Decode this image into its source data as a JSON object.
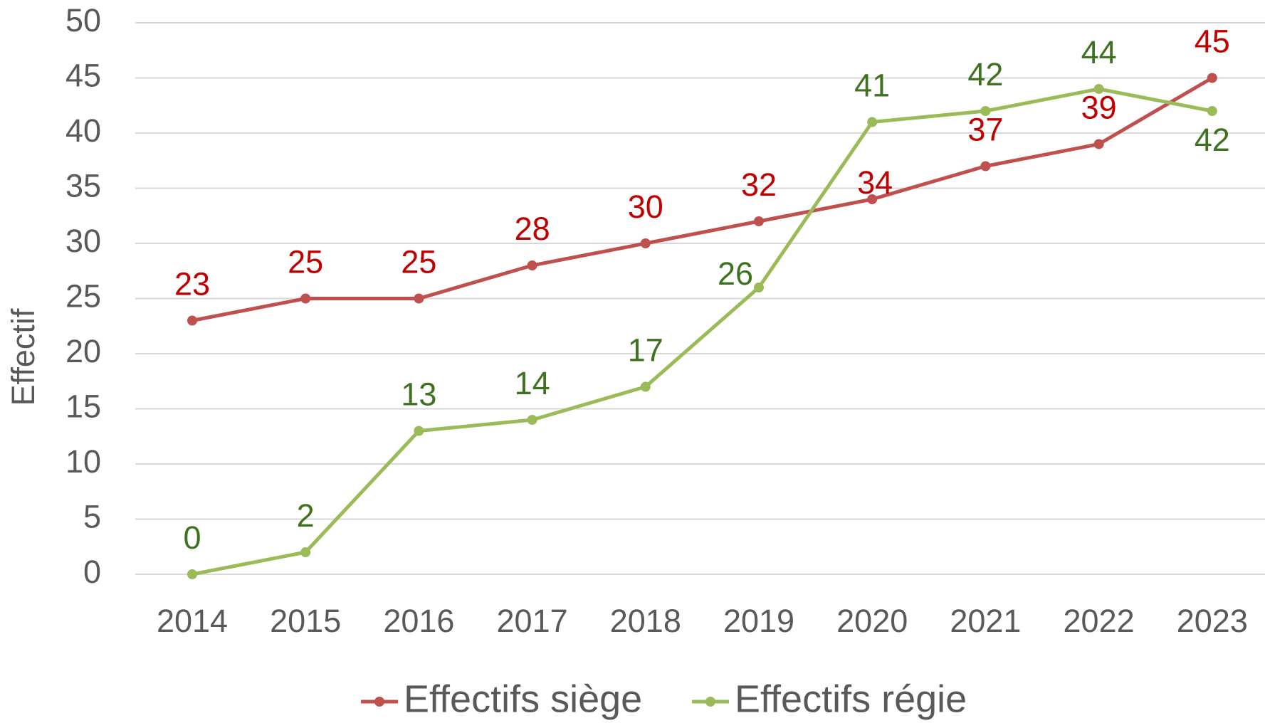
{
  "chart_data": {
    "type": "line",
    "y_label": "Effectif",
    "categories": [
      "2014",
      "2015",
      "2016",
      "2017",
      "2018",
      "2019",
      "2020",
      "2021",
      "2022",
      "2023"
    ],
    "series": [
      {
        "name": "Effectifs siège",
        "color": "#c0504d",
        "label_color": "#c00000",
        "values": [
          23,
          25,
          25,
          28,
          30,
          32,
          34,
          37,
          39,
          45
        ]
      },
      {
        "name": "Effectifs régie",
        "color": "#9bbb59",
        "label_color": "#3f7220",
        "values": [
          0,
          2,
          13,
          14,
          17,
          26,
          41,
          42,
          44,
          42
        ]
      }
    ],
    "ylim": [
      0,
      50
    ],
    "yticks": [
      0,
      5,
      10,
      15,
      20,
      25,
      30,
      35,
      40,
      45,
      50
    ],
    "grid": true,
    "legend": "bottom"
  }
}
